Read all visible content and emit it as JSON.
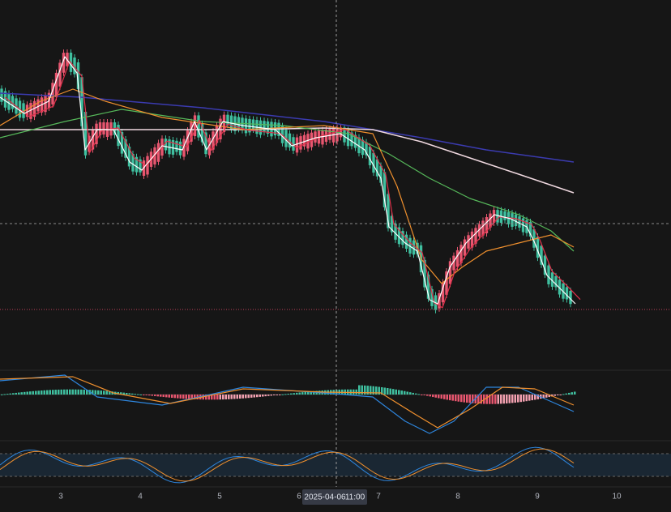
{
  "x_axis": {
    "labels": [
      "3",
      "4",
      "5",
      "6",
      "7",
      "8",
      "9",
      "10"
    ]
  },
  "crosshair": {
    "date": "2025-04-06",
    "time": "11:00"
  }
}
